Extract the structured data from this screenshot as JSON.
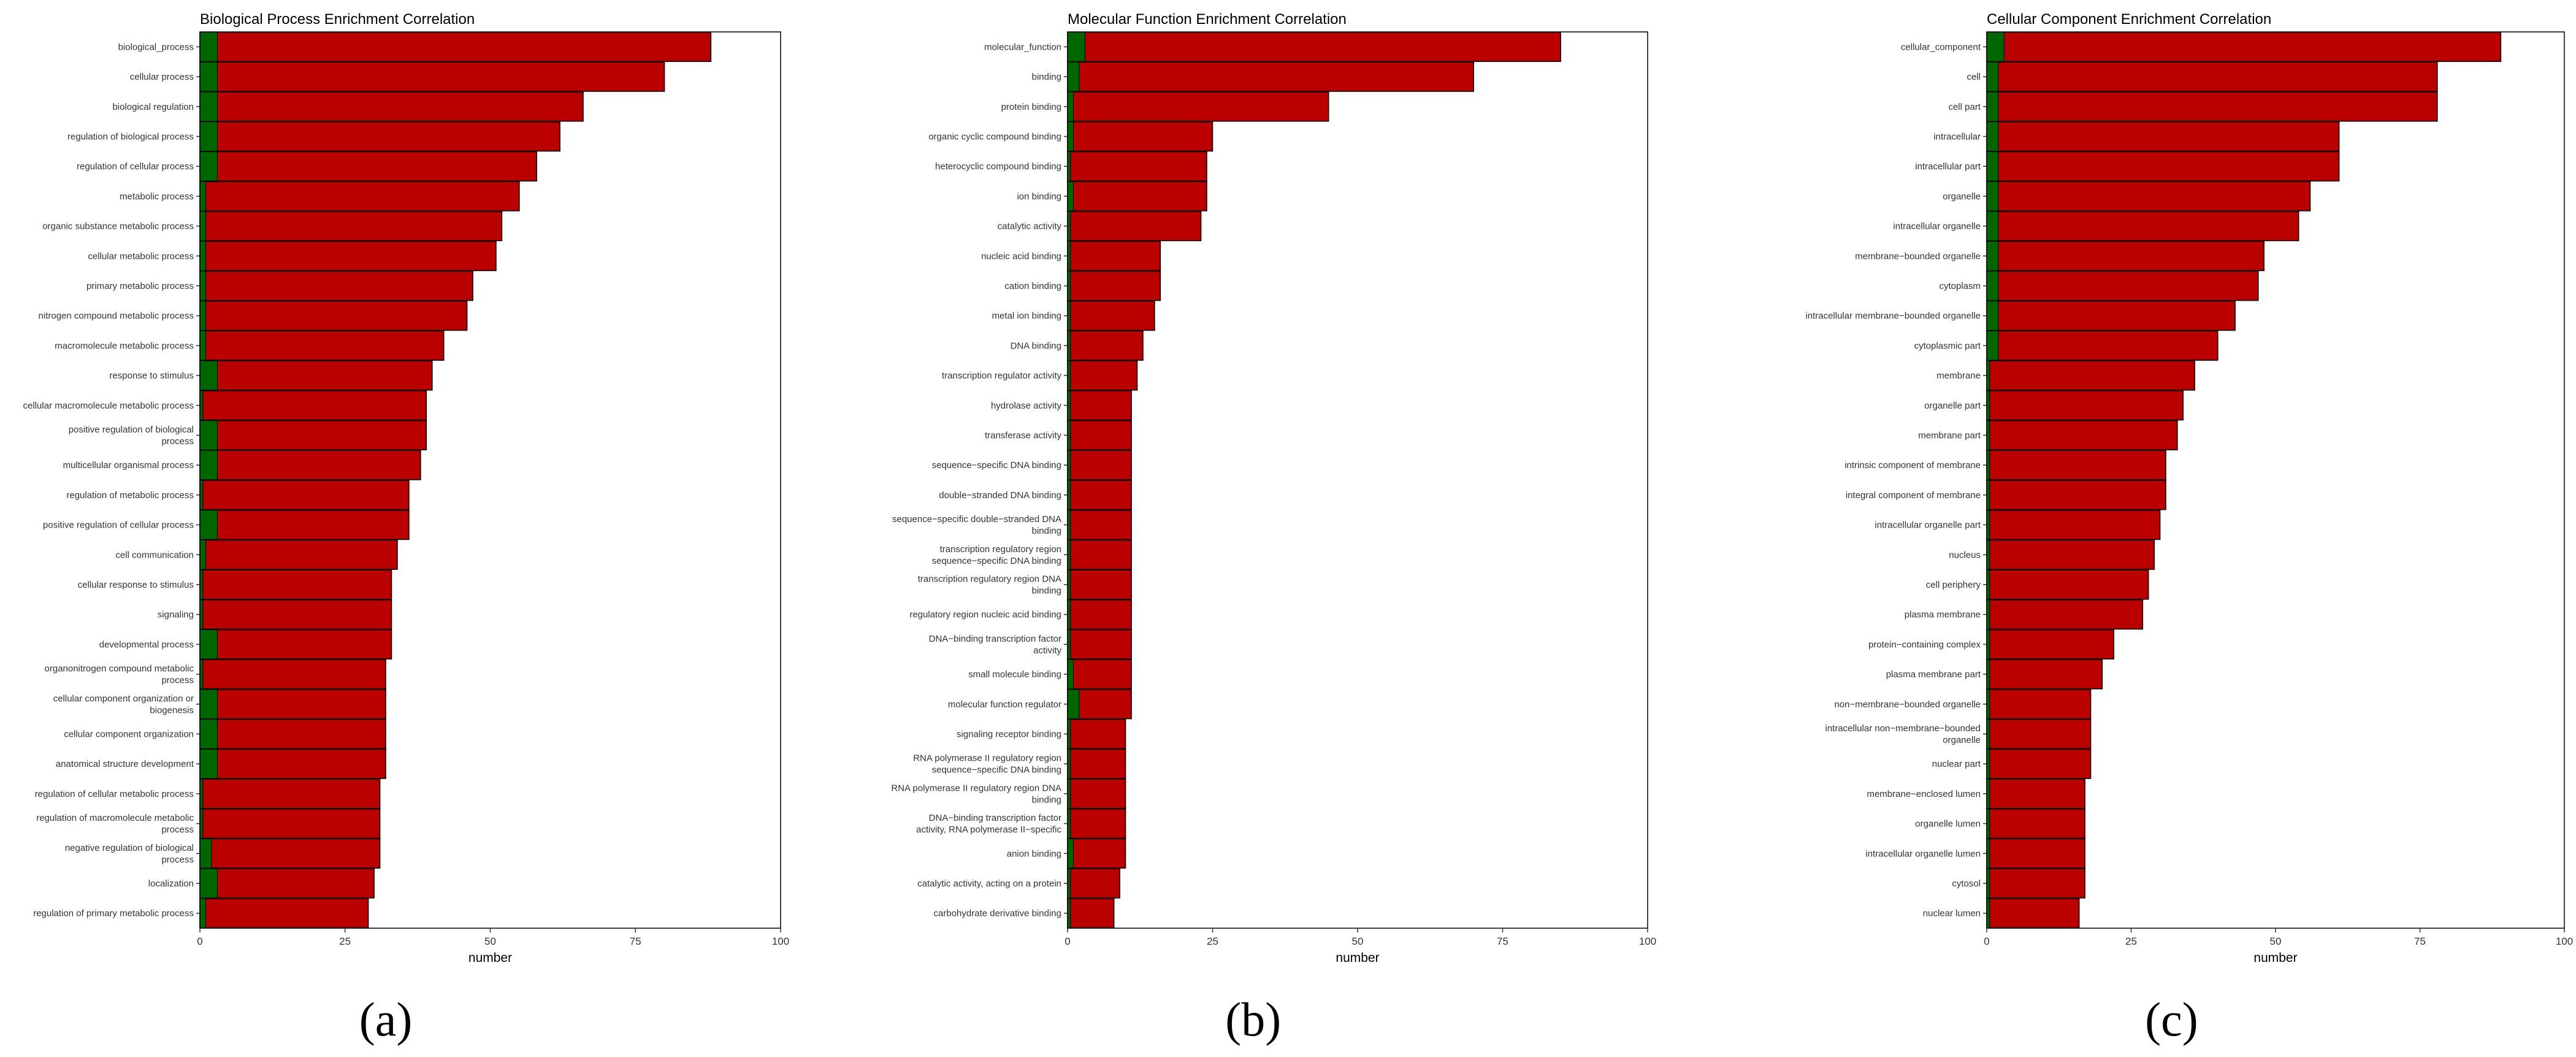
{
  "colors": {
    "total": "#BB0000",
    "enriched": "#006600"
  },
  "chart_data": [
    {
      "type": "bar",
      "orientation": "horizontal",
      "stacked_overlay": true,
      "title": "Biological Process Enrichment Correlation",
      "xlabel": "number",
      "ylabel": "",
      "xlim": [
        0,
        100
      ],
      "xticks": [
        "0",
        "25",
        "50",
        "75",
        "100"
      ],
      "grid": false,
      "panel_label": "(a)",
      "categories": [
        [
          "biological_process"
        ],
        [
          "cellular process"
        ],
        [
          "biological regulation"
        ],
        [
          "regulation of biological process"
        ],
        [
          "regulation of cellular process"
        ],
        [
          "metabolic process"
        ],
        [
          "organic substance metabolic process"
        ],
        [
          "cellular metabolic process"
        ],
        [
          "primary metabolic process"
        ],
        [
          "nitrogen compound metabolic process"
        ],
        [
          "macromolecule metabolic process"
        ],
        [
          "response to stimulus"
        ],
        [
          "cellular macromolecule metabolic process"
        ],
        [
          "positive regulation of biological",
          "process"
        ],
        [
          "multicellular organismal process"
        ],
        [
          "regulation of metabolic process"
        ],
        [
          "positive regulation of cellular process"
        ],
        [
          "cell communication"
        ],
        [
          "cellular response to stimulus"
        ],
        [
          "signaling"
        ],
        [
          "developmental process"
        ],
        [
          "organonitrogen compound metabolic",
          "process"
        ],
        [
          "cellular component organization or",
          "biogenesis"
        ],
        [
          "cellular component organization"
        ],
        [
          "anatomical structure development"
        ],
        [
          "regulation of cellular metabolic process"
        ],
        [
          "regulation of macromolecule metabolic",
          "process"
        ],
        [
          "negative regulation of biological",
          "process"
        ],
        [
          "localization"
        ],
        [
          "regulation of primary metabolic process"
        ]
      ],
      "series": [
        {
          "values": [
            88,
            80,
            66,
            62,
            58,
            55,
            52,
            51,
            47,
            46,
            42,
            40,
            39,
            39,
            38,
            36,
            36,
            34,
            33,
            33,
            33,
            32,
            32,
            32,
            32,
            31,
            31,
            31,
            30,
            29
          ]
        },
        {
          "values": [
            3,
            3,
            3,
            3,
            3,
            1,
            1,
            1,
            1,
            1,
            1,
            3,
            0.5,
            3,
            3,
            0.5,
            3,
            1,
            0.5,
            0.5,
            3,
            0.5,
            3,
            3,
            3,
            0.5,
            0.5,
            2,
            3,
            1
          ]
        }
      ]
    },
    {
      "type": "bar",
      "orientation": "horizontal",
      "stacked_overlay": true,
      "title": "Molecular Function Enrichment Correlation",
      "xlabel": "number",
      "ylabel": "",
      "xlim": [
        0,
        100
      ],
      "xticks": [
        "0",
        "25",
        "50",
        "75",
        "100"
      ],
      "grid": false,
      "panel_label": "(b)",
      "categories": [
        [
          "molecular_function"
        ],
        [
          "binding"
        ],
        [
          "protein binding"
        ],
        [
          "organic cyclic compound binding"
        ],
        [
          "heterocyclic compound binding"
        ],
        [
          "ion binding"
        ],
        [
          "catalytic activity"
        ],
        [
          "nucleic acid binding"
        ],
        [
          "cation binding"
        ],
        [
          "metal ion binding"
        ],
        [
          "DNA binding"
        ],
        [
          "transcription regulator activity"
        ],
        [
          "hydrolase activity"
        ],
        [
          "transferase activity"
        ],
        [
          "sequence−specific DNA binding"
        ],
        [
          "double−stranded DNA binding"
        ],
        [
          "sequence−specific double−stranded DNA",
          "binding"
        ],
        [
          "transcription regulatory region",
          "sequence−specific DNA binding"
        ],
        [
          "transcription regulatory region DNA",
          "binding"
        ],
        [
          "regulatory region nucleic acid binding"
        ],
        [
          "DNA−binding transcription factor",
          "activity"
        ],
        [
          "small molecule binding"
        ],
        [
          "molecular function regulator"
        ],
        [
          "signaling receptor binding"
        ],
        [
          "RNA polymerase II regulatory region",
          "sequence−specific DNA binding"
        ],
        [
          "RNA polymerase II regulatory region DNA",
          "binding"
        ],
        [
          "DNA−binding transcription factor",
          "activity, RNA polymerase II−specific"
        ],
        [
          "anion binding"
        ],
        [
          "catalytic activity, acting on a protein"
        ],
        [
          "carbohydrate derivative binding"
        ]
      ],
      "series": [
        {
          "values": [
            85,
            70,
            45,
            25,
            24,
            24,
            23,
            16,
            16,
            15,
            13,
            12,
            11,
            11,
            11,
            11,
            11,
            11,
            11,
            11,
            11,
            11,
            11,
            10,
            10,
            10,
            10,
            10,
            9,
            8
          ]
        },
        {
          "values": [
            3,
            2,
            1,
            1,
            0.5,
            1,
            0.5,
            0.5,
            0.5,
            0.5,
            0.5,
            0.5,
            0.5,
            0.5,
            0.5,
            0.5,
            0.5,
            0.5,
            0.5,
            0.5,
            0.5,
            1,
            2,
            0.5,
            0.5,
            0.5,
            0.5,
            1,
            0.5,
            0.5
          ]
        }
      ]
    },
    {
      "type": "bar",
      "orientation": "horizontal",
      "stacked_overlay": true,
      "title": "Cellular Component Enrichment Correlation",
      "xlabel": "number",
      "ylabel": "",
      "xlim": [
        0,
        100
      ],
      "xticks": [
        "0",
        "25",
        "50",
        "75",
        "100"
      ],
      "grid": false,
      "panel_label": "(c)",
      "categories": [
        [
          "cellular_component"
        ],
        [
          "cell"
        ],
        [
          "cell part"
        ],
        [
          "intracellular"
        ],
        [
          "intracellular part"
        ],
        [
          "organelle"
        ],
        [
          "intracellular organelle"
        ],
        [
          "membrane−bounded organelle"
        ],
        [
          "cytoplasm"
        ],
        [
          "intracellular membrane−bounded organelle"
        ],
        [
          "cytoplasmic part"
        ],
        [
          "membrane"
        ],
        [
          "organelle part"
        ],
        [
          "membrane part"
        ],
        [
          "intrinsic component of membrane"
        ],
        [
          "integral component of membrane"
        ],
        [
          "intracellular organelle part"
        ],
        [
          "nucleus"
        ],
        [
          "cell periphery"
        ],
        [
          "plasma membrane"
        ],
        [
          "protein−containing complex"
        ],
        [
          "plasma membrane part"
        ],
        [
          "non−membrane−bounded organelle"
        ],
        [
          "intracellular non−membrane−bounded",
          "organelle"
        ],
        [
          "nuclear part"
        ],
        [
          "membrane−enclosed lumen"
        ],
        [
          "organelle lumen"
        ],
        [
          "intracellular organelle lumen"
        ],
        [
          "cytosol"
        ],
        [
          "nuclear lumen"
        ]
      ],
      "series": [
        {
          "values": [
            89,
            78,
            78,
            61,
            61,
            56,
            54,
            48,
            47,
            43,
            40,
            36,
            34,
            33,
            31,
            31,
            30,
            29,
            28,
            27,
            22,
            20,
            18,
            18,
            18,
            17,
            17,
            17,
            17,
            16
          ]
        },
        {
          "values": [
            3,
            2,
            2,
            2,
            2,
            2,
            2,
            2,
            2,
            2,
            2,
            0.5,
            0.5,
            0.5,
            0.5,
            0.5,
            0.5,
            0.5,
            0.5,
            0.5,
            0.5,
            0.5,
            0.5,
            0.5,
            0.5,
            0.5,
            0.5,
            0.5,
            0.5,
            0.5
          ]
        }
      ]
    }
  ]
}
